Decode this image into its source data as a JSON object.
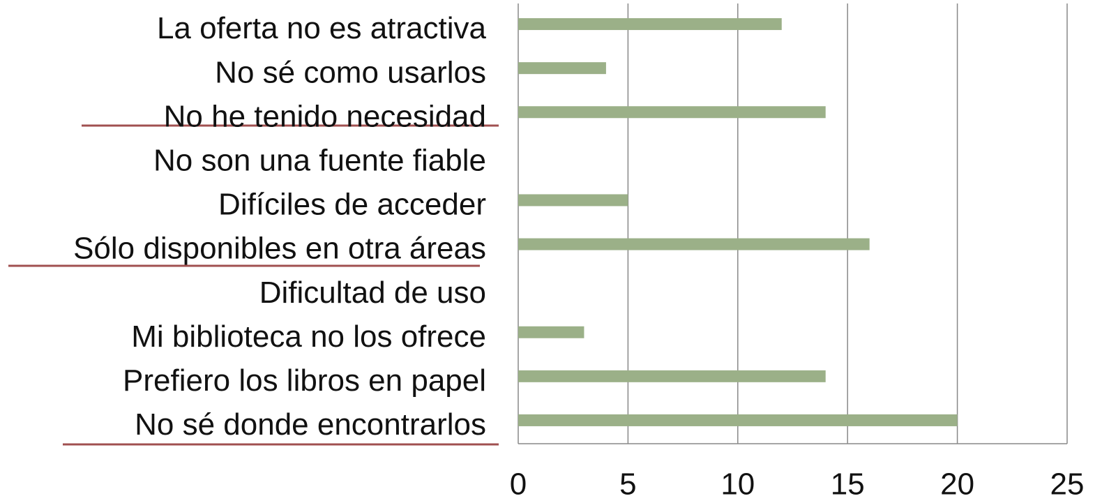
{
  "chart_data": {
    "type": "barh",
    "categories": [
      "La oferta no es atractiva",
      "No sé como usarlos",
      "No he tenido necesidad",
      "No son una fuente fiable",
      "Difíciles de acceder",
      "Sólo disponibles en otra áreas",
      "Dificultad de uso",
      "Mi biblioteca no los ofrece",
      "Prefiero los libros en papel",
      "No sé donde encontrarlos"
    ],
    "values": [
      12,
      4,
      14,
      0,
      5,
      16,
      0,
      3,
      14,
      20
    ],
    "color": "#9bb088",
    "xlim": [
      0,
      25
    ],
    "xticks": [
      0,
      5,
      10,
      15,
      20,
      25
    ],
    "grid": true
  }
}
